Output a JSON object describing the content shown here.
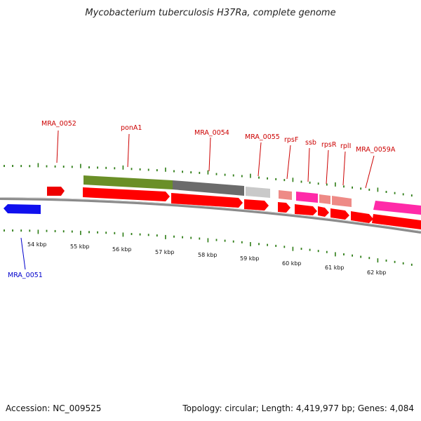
{
  "title": "Mycobacterium tuberculosis H37Ra, complete genome",
  "footer": {
    "accession": "Accession: NC_009525",
    "summary": "Topology: circular; Length: 4,419,977 bp; Genes: 4,084"
  },
  "scale": {
    "unit": "kbp",
    "labels": [
      "54 kbp",
      "55 kbp",
      "56 kbp",
      "57 kbp",
      "58 kbp",
      "59 kbp",
      "60 kbp",
      "61 kbp",
      "62 kbp"
    ]
  },
  "colors": {
    "tick": "#2e7d16",
    "backbone": "#8a8a8a",
    "cds": "#ff0000",
    "forward_gene": "#1010ee",
    "gene_olive": "#6a8f27",
    "gene_gray": "#6b6b6b",
    "gene_lightgray": "#c9c9c9",
    "gene_salmon": "#ee8a86",
    "gene_magenta": "#ff2aa8",
    "label_red": "#cc0000",
    "label_blue": "#0000cc"
  },
  "gene_labels": [
    {
      "name": "MRA_0051",
      "color": "blue"
    },
    {
      "name": "MRA_0052",
      "color": "red"
    },
    {
      "name": "ponA1",
      "color": "red"
    },
    {
      "name": "MRA_0054",
      "color": "red"
    },
    {
      "name": "MRA_0055",
      "color": "red"
    },
    {
      "name": "rpsF",
      "color": "red"
    },
    {
      "name": "ssb",
      "color": "red"
    },
    {
      "name": "rpsR",
      "color": "red"
    },
    {
      "name": "rplI",
      "color": "red"
    },
    {
      "name": "MRA_0059A",
      "color": "red"
    }
  ]
}
